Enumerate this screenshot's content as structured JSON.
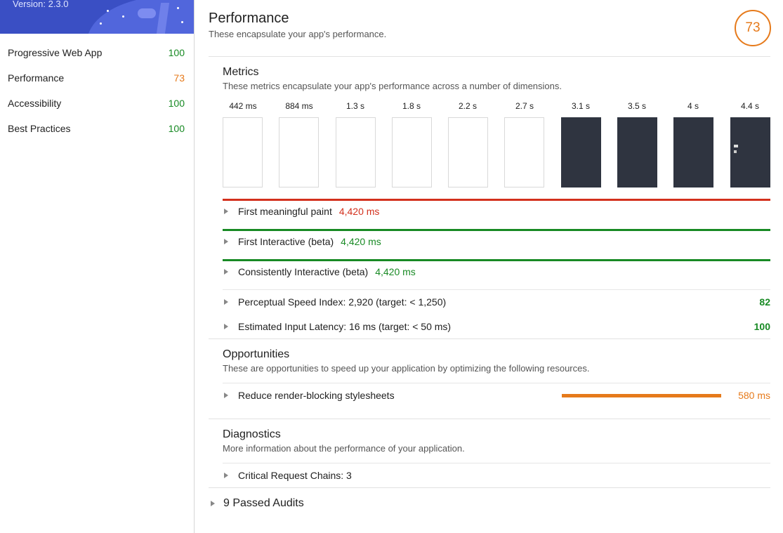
{
  "sidebar": {
    "version": "Version: 2.3.0",
    "categories": [
      {
        "label": "Progressive Web App",
        "score": "100",
        "color": "#188a24"
      },
      {
        "label": "Performance",
        "score": "73",
        "color": "#e67a1b"
      },
      {
        "label": "Accessibility",
        "score": "100",
        "color": "#188a24"
      },
      {
        "label": "Best Practices",
        "score": "100",
        "color": "#188a24"
      }
    ]
  },
  "performance": {
    "title": "Performance",
    "subtitle": "These encapsulate your app's performance.",
    "score": "73"
  },
  "metrics": {
    "title": "Metrics",
    "description": "These metrics encapsulate your app's performance across a number of dimensions.",
    "filmstrip": [
      "442 ms",
      "884 ms",
      "1.3 s",
      "1.8 s",
      "2.2 s",
      "2.7 s",
      "3.1 s",
      "3.5 s",
      "4 s",
      "4.4 s"
    ],
    "items": [
      {
        "label": "First meaningful paint",
        "value": "4,420 ms",
        "status": "fail"
      },
      {
        "label": "First Interactive (beta)",
        "value": "4,420 ms",
        "status": "pass"
      },
      {
        "label": "Consistently Interactive (beta)",
        "value": "4,420 ms",
        "status": "pass"
      }
    ],
    "scored": [
      {
        "label": "Perceptual Speed Index: 2,920 (target: < 1,250)",
        "score": "82"
      },
      {
        "label": "Estimated Input Latency: 16 ms (target: < 50 ms)",
        "score": "100"
      }
    ]
  },
  "opportunities": {
    "title": "Opportunities",
    "description": "These are opportunities to speed up your application by optimizing the following resources.",
    "items": [
      {
        "label": "Reduce render-blocking stylesheets",
        "value": "580 ms"
      }
    ]
  },
  "diagnostics": {
    "title": "Diagnostics",
    "description": "More information about the performance of your application.",
    "items": [
      {
        "label": "Critical Request Chains: 3"
      }
    ]
  },
  "passed": {
    "label": "9 Passed Audits"
  },
  "colors": {
    "pass": "#188a24",
    "average": "#e67a1b",
    "fail": "#d3301d",
    "brand": "#3a4fc4"
  }
}
